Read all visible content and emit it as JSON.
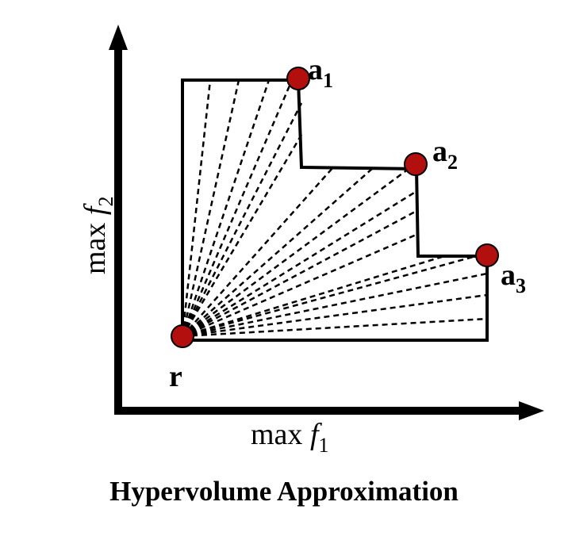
{
  "title": "Hypervolume Approximation",
  "axes": {
    "x_label_prefix": "max ",
    "x_label_var": "f",
    "x_label_sub": "1",
    "y_label_prefix": "max ",
    "y_label_var": "f",
    "y_label_sub": "2"
  },
  "points": {
    "reference": {
      "label": "r"
    },
    "a1": {
      "letter": "a",
      "sub": "1"
    },
    "a2": {
      "letter": "a",
      "sub": "2"
    },
    "a3": {
      "letter": "a",
      "sub": "3"
    }
  },
  "colors": {
    "point_fill": "#b30f0f",
    "stroke": "#000000"
  }
}
